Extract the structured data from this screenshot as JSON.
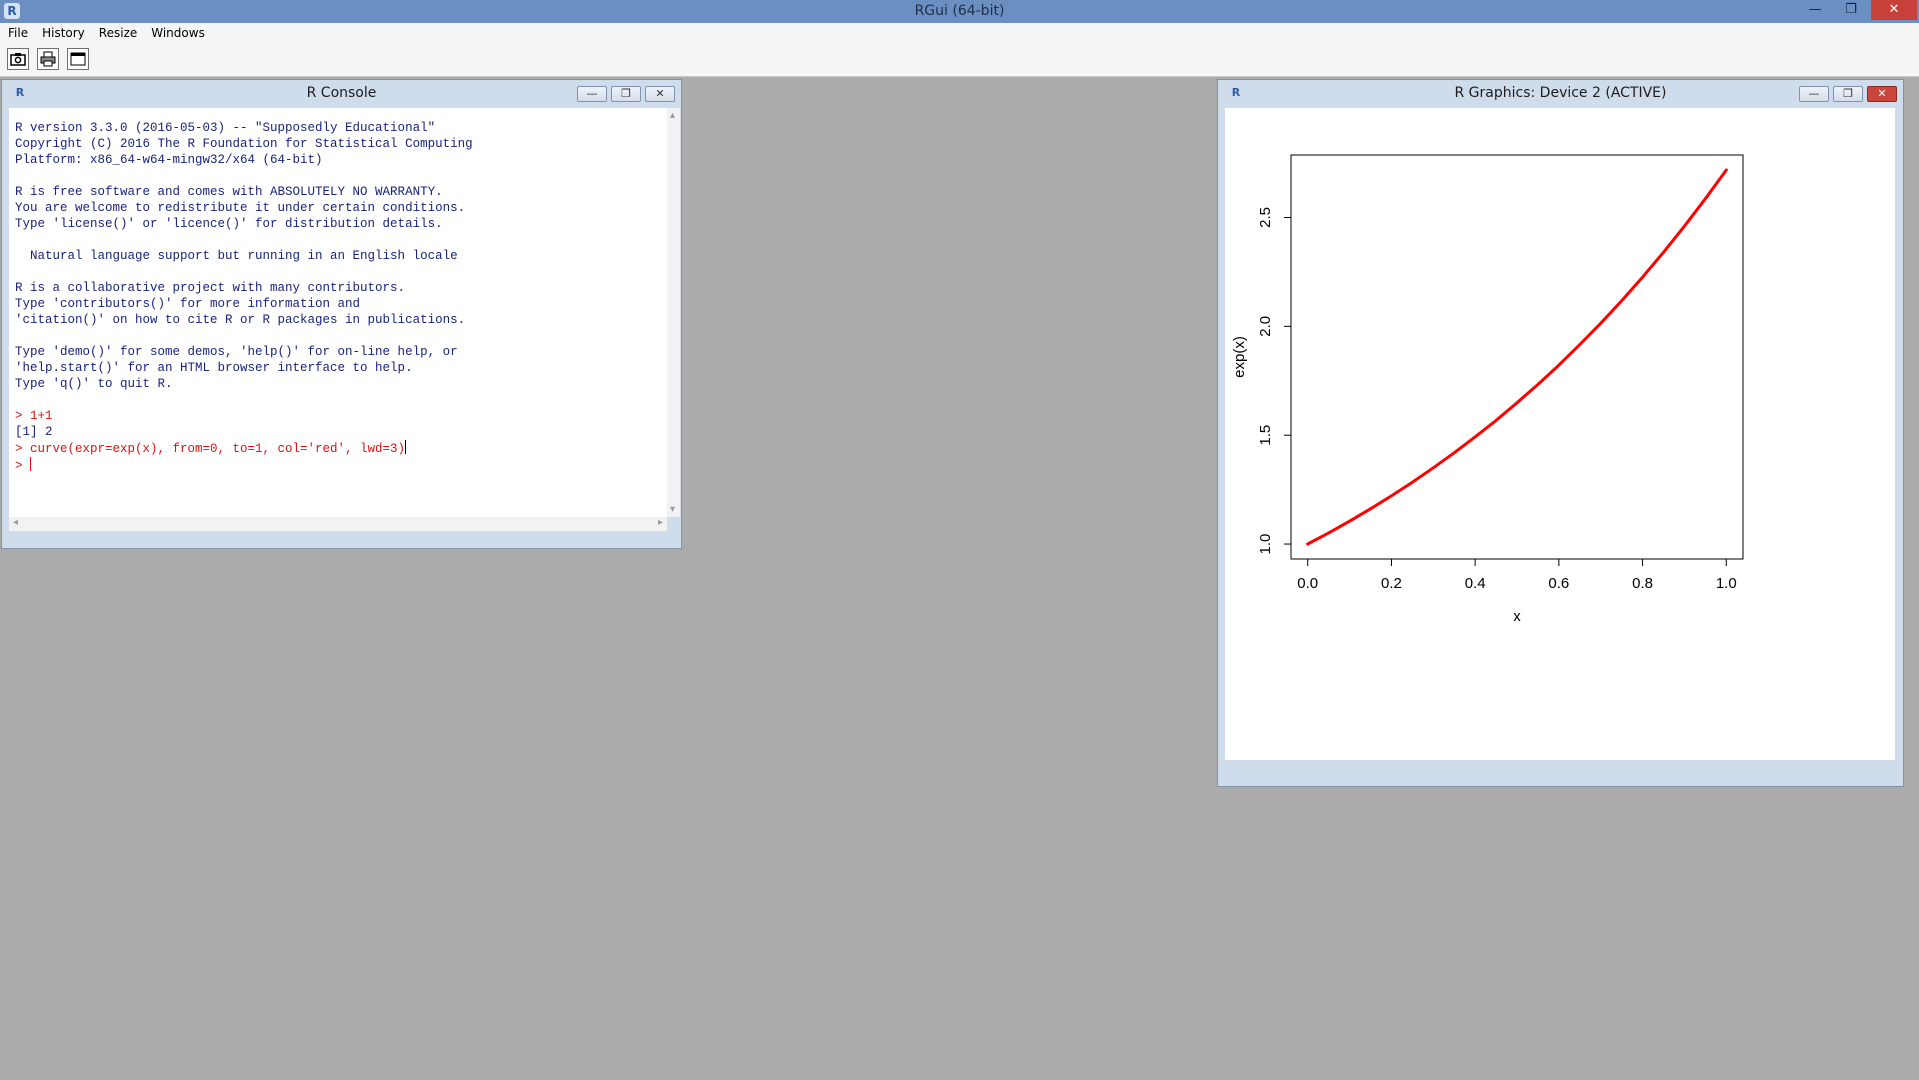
{
  "window": {
    "title": "RGui (64-bit)",
    "icon": "R",
    "controls": {
      "minimize": "—",
      "maximize": "❐",
      "close": "✕"
    }
  },
  "menu": [
    "File",
    "History",
    "Resize",
    "Windows"
  ],
  "toolbar": {
    "buttons": [
      {
        "name": "copy-screenshot-button",
        "icon": "camera-icon"
      },
      {
        "name": "print-button",
        "icon": "printer-icon"
      },
      {
        "name": "console-window-button",
        "icon": "window-icon"
      }
    ]
  },
  "console": {
    "title": "R Console",
    "icon": "R",
    "text_color": "#1a237e",
    "input_color": "#e01010",
    "lines": [
      "R version 3.3.0 (2016-05-03) -- \"Supposedly Educational\"",
      "Copyright (C) 2016 The R Foundation for Statistical Computing",
      "Platform: x86_64-w64-mingw32/x64 (64-bit)",
      "",
      "R is free software and comes with ABSOLUTELY NO WARRANTY.",
      "You are welcome to redistribute it under certain conditions.",
      "Type 'license()' or 'licence()' for distribution details.",
      "",
      "  Natural language support but running in an English locale",
      "",
      "R is a collaborative project with many contributors.",
      "Type 'contributors()' for more information and",
      "'citation()' on how to cite R or R packages in publications.",
      "",
      "Type 'demo()' for some demos, 'help()' for on-line help, or",
      "'help.start()' for an HTML browser interface to help.",
      "Type 'q()' to quit R.",
      ""
    ],
    "commands": [
      {
        "input": "> 1+1",
        "output": "[1] 2"
      },
      {
        "input": "> curve(expr=exp(x), from=0, to=1, col='red', lwd=3)",
        "output": null
      }
    ],
    "prompt": "> "
  },
  "graphics": {
    "title": "R Graphics: Device 2 (ACTIVE)",
    "icon": "R"
  },
  "chart_data": {
    "type": "line",
    "title": "",
    "xlabel": "x",
    "ylabel": "exp(x)",
    "xlim": [
      -0.04,
      1.04
    ],
    "ylim": [
      0.9313,
      2.787
    ],
    "xticks": [
      0.0,
      0.2,
      0.4,
      0.6,
      0.8,
      1.0
    ],
    "xtick_labels": [
      "0.0",
      "0.2",
      "0.4",
      "0.6",
      "0.8",
      "1.0"
    ],
    "yticks": [
      1.0,
      1.5,
      2.0,
      2.5
    ],
    "ytick_labels": [
      "1.0",
      "1.5",
      "2.0",
      "2.5"
    ],
    "grid": false,
    "series": [
      {
        "color": "#ff0000",
        "x": [
          0.0,
          0.05,
          0.1,
          0.15,
          0.2,
          0.25,
          0.3,
          0.35,
          0.4,
          0.45,
          0.5,
          0.55,
          0.6,
          0.65,
          0.7,
          0.75,
          0.8,
          0.85,
          0.9,
          0.95,
          1.0
        ],
        "y": [
          1.0,
          1.051,
          1.105,
          1.162,
          1.221,
          1.284,
          1.35,
          1.419,
          1.492,
          1.568,
          1.649,
          1.733,
          1.822,
          1.916,
          2.014,
          2.117,
          2.226,
          2.34,
          2.46,
          2.586,
          2.718
        ]
      }
    ]
  }
}
